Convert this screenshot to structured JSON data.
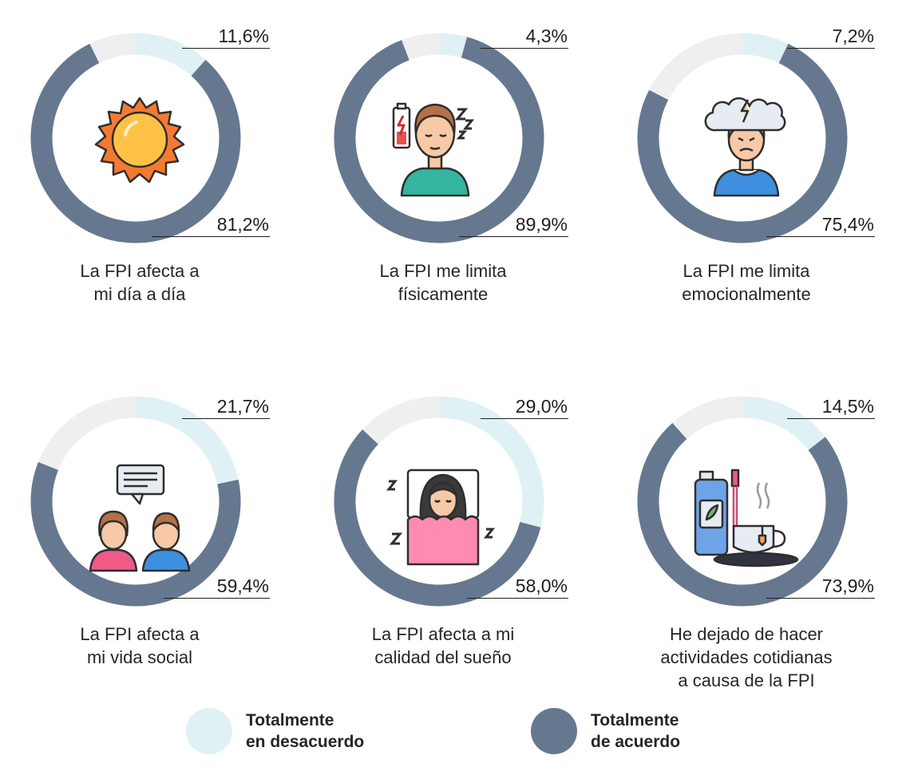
{
  "chart_data": {
    "type": "donut",
    "colors": {
      "disagree": "#dff1f4",
      "agree": "#66788f",
      "neutral": "#efefef"
    },
    "legend": {
      "disagree": [
        "Totalmente",
        "en desacuerdo"
      ],
      "agree": [
        "Totalmente",
        "de acuerdo"
      ]
    },
    "charts": [
      {
        "caption": [
          "La FPI afecta a",
          "mi día a día"
        ],
        "disagree": 11.6,
        "agree": 81.2,
        "disagree_label": "11,6%",
        "agree_label": "81,2%",
        "icon": "sun-icon"
      },
      {
        "caption": [
          "La FPI me limita",
          "físicamente"
        ],
        "disagree": 4.3,
        "agree": 89.9,
        "disagree_label": "4,3%",
        "agree_label": "89,9%",
        "icon": "tired-person-icon"
      },
      {
        "caption": [
          "La FPI me limita",
          "emocionalmente"
        ],
        "disagree": 7.2,
        "agree": 75.4,
        "disagree_label": "7,2%",
        "agree_label": "75,4%",
        "icon": "stressed-person-icon"
      },
      {
        "caption": [
          "La FPI afecta a",
          "mi vida social"
        ],
        "disagree": 21.7,
        "agree": 59.4,
        "disagree_label": "21,7%",
        "agree_label": "59,4%",
        "icon": "conversation-icon"
      },
      {
        "caption": [
          "La FPI afecta a mi",
          "calidad del sueño"
        ],
        "disagree": 29.0,
        "agree": 58.0,
        "disagree_label": "29,0%",
        "agree_label": "58,0%",
        "icon": "sleeping-person-icon"
      },
      {
        "caption": [
          "He dejado de hacer",
          "actividades cotidianas",
          "a causa de la FPI"
        ],
        "disagree": 14.5,
        "agree": 73.9,
        "disagree_label": "14,5%",
        "agree_label": "73,9%",
        "icon": "hygiene-items-icon"
      }
    ]
  }
}
